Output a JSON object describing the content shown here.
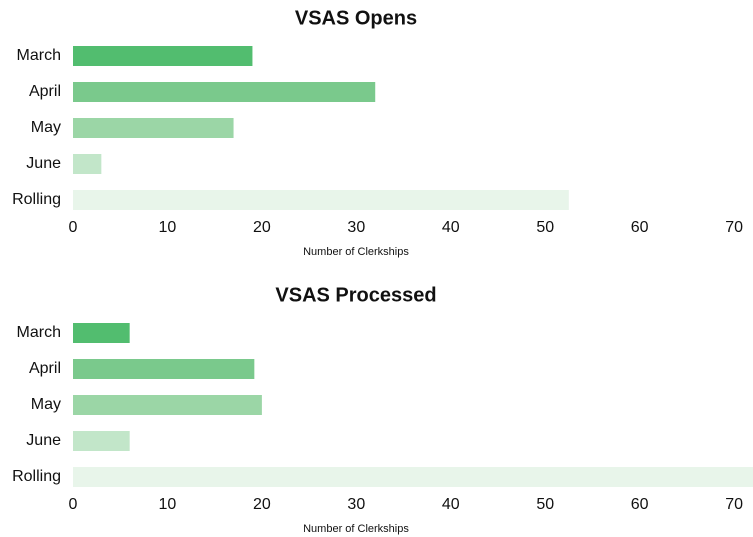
{
  "chart_data": [
    {
      "type": "bar",
      "orientation": "horizontal",
      "title": "VSAS Opens",
      "x_label": "Number of Clerkships",
      "categories": [
        "March",
        "April",
        "May",
        "June",
        "Rolling"
      ],
      "values": [
        19,
        32,
        17,
        3,
        52.5
      ],
      "colors": [
        "#52bd6f",
        "#7ac98c",
        "#9bd6a6",
        "#c2e6c9",
        "#e8f5ea"
      ],
      "xlim": [
        0,
        72
      ],
      "xticks": [
        0,
        10,
        20,
        30,
        40,
        50,
        60,
        70
      ],
      "grid": false
    },
    {
      "type": "bar",
      "orientation": "horizontal",
      "title": "VSAS Processed",
      "x_label": "Number of Clerkships",
      "categories": [
        "March",
        "April",
        "May",
        "June",
        "Rolling"
      ],
      "values": [
        6,
        19.2,
        20,
        6,
        72
      ],
      "colors": [
        "#52bd6f",
        "#7ac98c",
        "#9bd6a6",
        "#c2e6c9",
        "#e8f5ea"
      ],
      "xlim": [
        0,
        72
      ],
      "xticks": [
        0,
        10,
        20,
        30,
        40,
        50,
        60,
        70
      ],
      "grid": false
    }
  ]
}
